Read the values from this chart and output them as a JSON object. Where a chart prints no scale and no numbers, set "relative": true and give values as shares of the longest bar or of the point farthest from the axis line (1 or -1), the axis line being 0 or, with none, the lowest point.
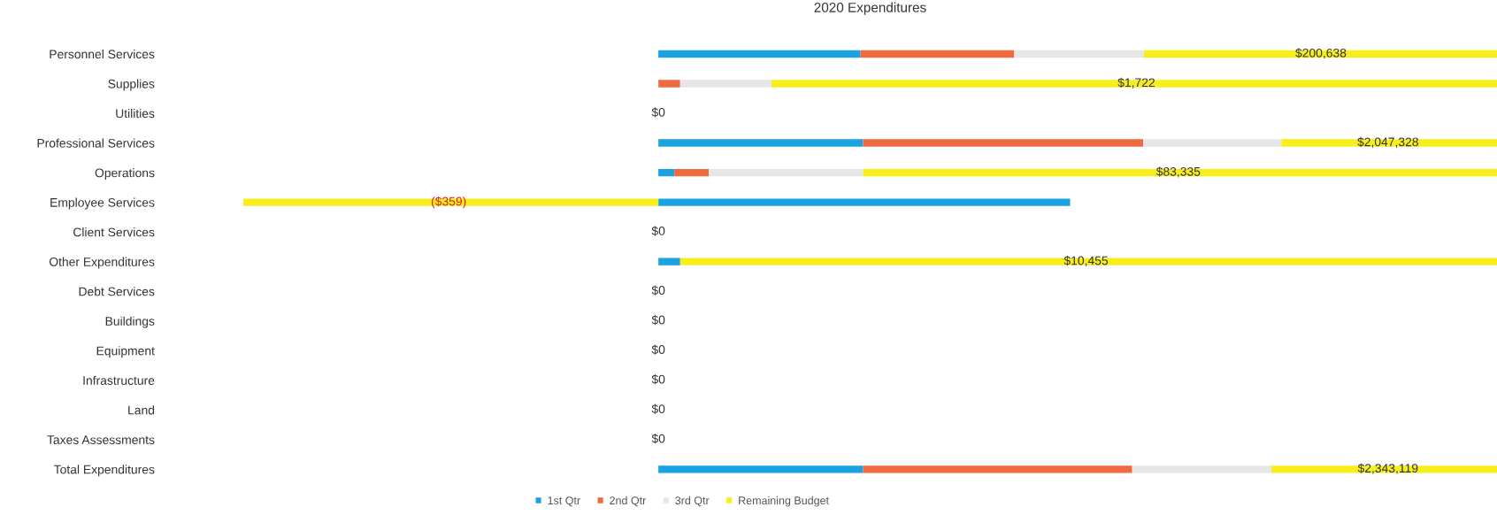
{
  "chart_data": {
    "type": "bar",
    "orientation": "horizontal",
    "stacked": true,
    "relative": true,
    "title": "2020 Expenditures",
    "categories": [
      "Personnel Services",
      "Supplies",
      "Utilities",
      "Professional Services",
      "Operations",
      "Employee Services",
      "Client Services",
      "Other Expenditures",
      "Debt Services",
      "Buildings",
      "Equipment",
      "Infrastructure",
      "Land",
      "Taxes Assessments",
      "Total Expenditures"
    ],
    "series": [
      {
        "name": "1st Qtr",
        "color": "#1aa3e0",
        "values": [
          0.241,
          0,
          0,
          0.244,
          0.019,
          0.491,
          0,
          0.026,
          0,
          0,
          0,
          0,
          0,
          0,
          0.244
        ]
      },
      {
        "name": "2nd Qtr",
        "color": "#f06a3f",
        "values": [
          0.183,
          0.026,
          0,
          0.334,
          0.041,
          0,
          0,
          0,
          0,
          0,
          0,
          0,
          0,
          0,
          0.321
        ]
      },
      {
        "name": "3rd Qtr",
        "color": "#e6e6e6",
        "values": [
          0.155,
          0.109,
          0,
          0.165,
          0.184,
          0,
          0,
          0,
          0,
          0,
          0,
          0,
          0,
          0,
          0.166
        ]
      },
      {
        "name": "Remaining Budget",
        "color": "#f7ee1c",
        "values": [
          0.421,
          0.865,
          0,
          0.257,
          0.756,
          -0.495,
          0,
          0.974,
          0,
          0,
          0,
          0,
          0,
          0,
          0.269
        ]
      }
    ],
    "annotations": [
      {
        "text": "$200,638",
        "x": 0.79,
        "y": "Personnel Services"
      },
      {
        "text": "$1,722",
        "x": 0.57,
        "y": "Supplies"
      },
      {
        "text": "$0",
        "x": 0,
        "y": "Utilities"
      },
      {
        "text": "$2,047,328",
        "x": 0.87,
        "y": "Professional Services"
      },
      {
        "text": "$83,335",
        "x": 0.62,
        "y": "Operations"
      },
      {
        "text": "($359)",
        "x": -0.25,
        "y": "Employee Services"
      },
      {
        "text": "$0",
        "x": 0,
        "y": "Client Services"
      },
      {
        "text": "$10,455",
        "x": 0.51,
        "y": "Other Expenditures"
      },
      {
        "text": "$0",
        "x": 0,
        "y": "Debt Services"
      },
      {
        "text": "$0",
        "x": 0,
        "y": "Buildings"
      },
      {
        "text": "$0",
        "x": 0,
        "y": "Equipment"
      },
      {
        "text": "$0",
        "x": 0,
        "y": "Infrastructure"
      },
      {
        "text": "$0",
        "x": 0,
        "y": "Land"
      },
      {
        "text": "$0",
        "x": 0,
        "y": "Taxes Assessments"
      },
      {
        "text": "$2,343,119",
        "x": 0.87,
        "y": "Total Expenditures"
      }
    ],
    "legend": "bottom"
  }
}
